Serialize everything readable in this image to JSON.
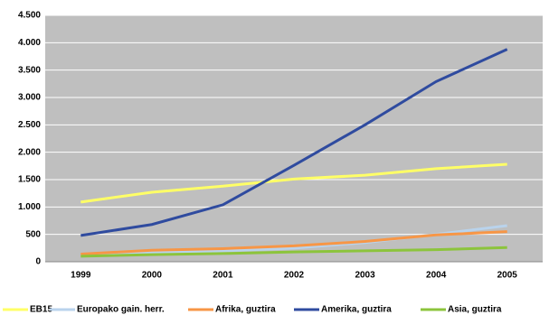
{
  "chart_data": {
    "type": "line",
    "categories": [
      "1999",
      "2000",
      "2001",
      "2002",
      "2003",
      "2004",
      "2005"
    ],
    "series": [
      {
        "name": "EB15",
        "color": "#ffff66",
        "values": [
          1090,
          1270,
          1380,
          1510,
          1580,
          1700,
          1780
        ]
      },
      {
        "name": "Europako gain. herr.",
        "color": "#b9d3ec",
        "values": [
          130,
          170,
          200,
          250,
          350,
          500,
          660
        ]
      },
      {
        "name": "Afrika, guztira",
        "color": "#f79646",
        "values": [
          140,
          210,
          240,
          290,
          370,
          490,
          550
        ]
      },
      {
        "name": "Amerika, guztira",
        "color": "#2f4b9f",
        "values": [
          480,
          680,
          1040,
          1760,
          2500,
          3290,
          3880
        ]
      },
      {
        "name": "Asia, guztira",
        "color": "#8cc43c",
        "values": [
          100,
          130,
          150,
          180,
          200,
          220,
          260
        ]
      }
    ],
    "ylim": [
      0,
      4500
    ],
    "yticks": [
      0,
      500,
      {
        "value": 1000,
        "label": "1.000"
      },
      {
        "value": 1500,
        "label": "1.500"
      },
      {
        "value": 2000,
        "label": "2.000"
      },
      {
        "value": 2500,
        "label": "2.500"
      },
      {
        "value": 3000,
        "label": "3.000"
      },
      {
        "value": 3500,
        "label": "3.500"
      },
      {
        "value": 4000,
        "label": "4.000"
      },
      {
        "value": 4500,
        "label": "4.500"
      }
    ],
    "grid": true,
    "legend": "bottom"
  }
}
